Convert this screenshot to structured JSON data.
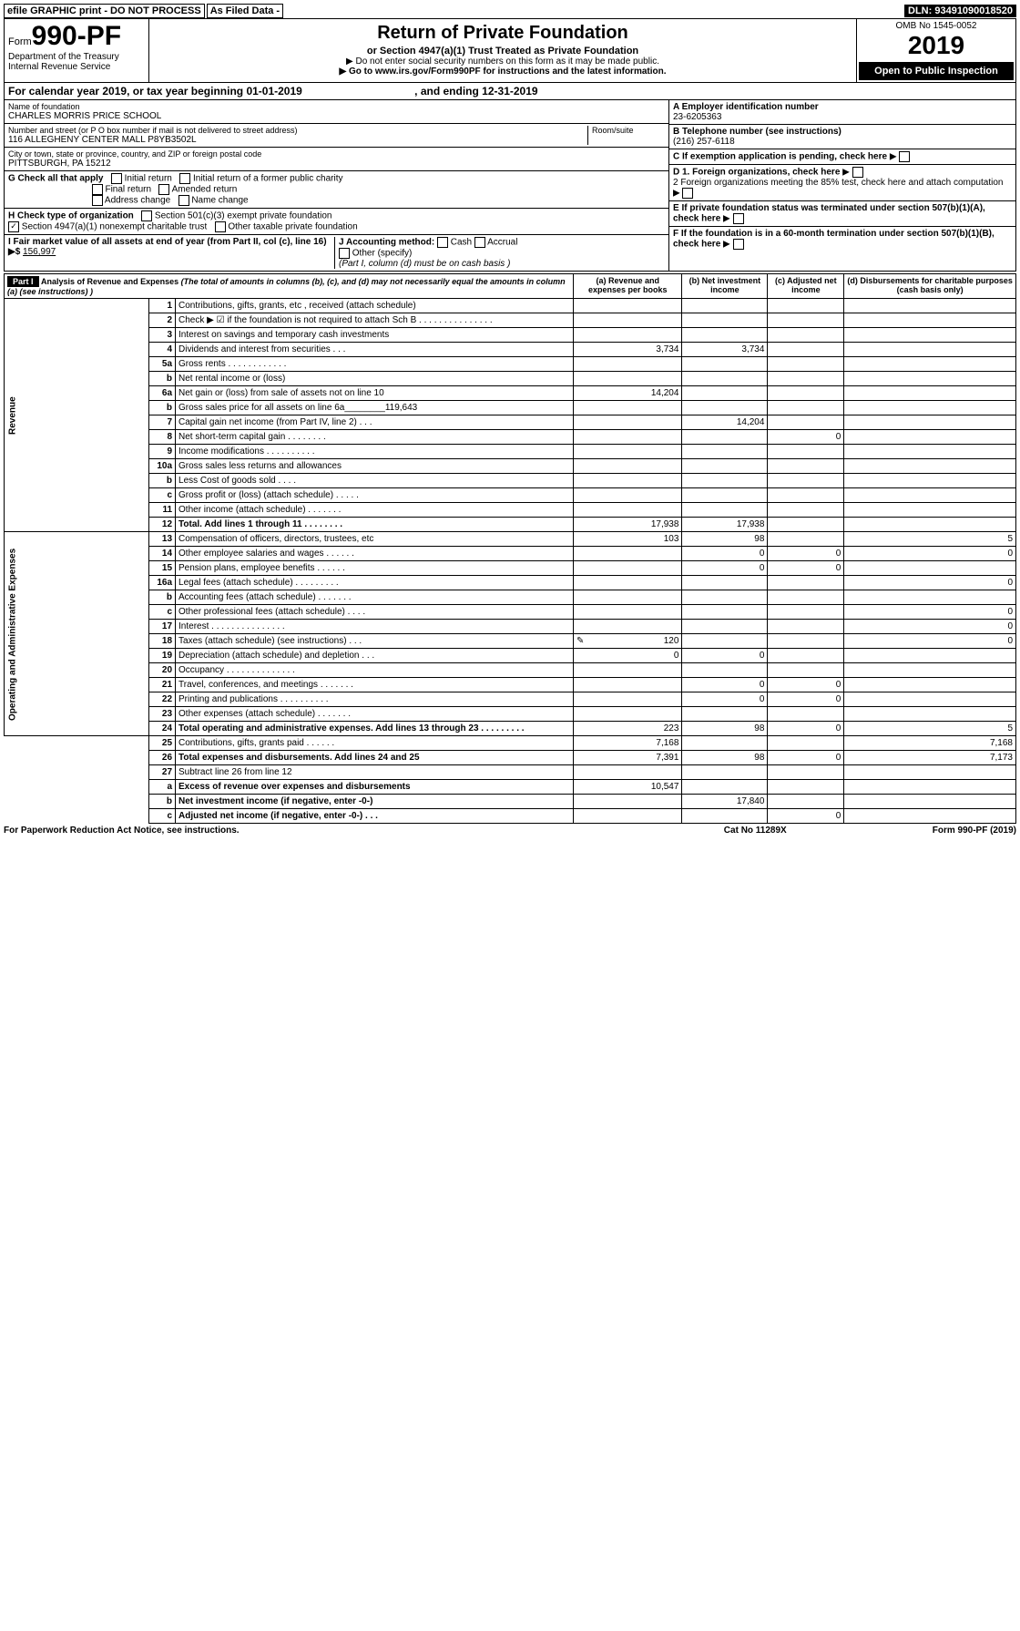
{
  "top": {
    "efile": "efile GRAPHIC print - DO NOT PROCESS",
    "asfiled": "As Filed Data -",
    "dln": "DLN: 93491090018520"
  },
  "hdr": {
    "form_prefix": "Form",
    "form_num": "990-PF",
    "dept": "Department of the Treasury",
    "irs": "Internal Revenue Service",
    "title": "Return of Private Foundation",
    "sub": "or Section 4947(a)(1) Trust Treated as Private Foundation",
    "note1": "▶ Do not enter social security numbers on this form as it may be made public.",
    "note2": "▶ Go to www.irs.gov/Form990PF for instructions and the latest information.",
    "omb": "OMB No 1545-0052",
    "year": "2019",
    "open": "Open to Public Inspection"
  },
  "cal": {
    "text": "For calendar year 2019, or tax year beginning 01-01-2019",
    "end": ", and ending 12-31-2019"
  },
  "info": {
    "name_lbl": "Name of foundation",
    "name": "CHARLES MORRIS PRICE SCHOOL",
    "addr_lbl": "Number and street (or P O  box number if mail is not delivered to street address)",
    "room_lbl": "Room/suite",
    "addr": "116 ALLEGHENY CENTER MALL P8YB3502L",
    "city_lbl": "City or town, state or province, country, and ZIP or foreign postal code",
    "city": "PITTSBURGH, PA  15212",
    "ein_lbl": "A Employer identification number",
    "ein": "23-6205363",
    "tel_lbl": "B Telephone number (see instructions)",
    "tel": "(216) 257-6118",
    "c_lbl": "C If exemption application is pending, check here",
    "g_lbl": "G Check all that apply",
    "g1": "Initial return",
    "g2": "Initial return of a former public charity",
    "g3": "Final return",
    "g4": "Amended return",
    "g5": "Address change",
    "g6": "Name change",
    "h_lbl": "H Check type of organization",
    "h1": "Section 501(c)(3) exempt private foundation",
    "h2": "Section 4947(a)(1) nonexempt charitable trust",
    "h3": "Other taxable private foundation",
    "d_lbl": "D 1. Foreign organizations, check here",
    "d2": "2 Foreign organizations meeting the 85% test, check here and attach computation",
    "e_lbl": "E  If private foundation status was terminated under section 507(b)(1)(A), check here",
    "f_lbl": "F  If the foundation is in a 60-month termination under section 507(b)(1)(B), check here",
    "i_lbl": "I Fair market value of all assets at end of year (from Part II, col  (c), line 16) ▶$",
    "i_val": "156,997",
    "j_lbl": "J Accounting method:",
    "j1": "Cash",
    "j2": "Accrual",
    "j3": "Other (specify)",
    "j_note": "(Part I, column (d) must be on cash basis )"
  },
  "pt1": {
    "part": "Part I",
    "title": "Analysis of Revenue and Expenses",
    "title_note": "(The total of amounts in columns (b), (c), and (d) may not necessarily equal the amounts in column (a) (see instructions) )",
    "cols": {
      "a": "(a) Revenue and expenses per books",
      "b": "(b) Net investment income",
      "c": "(c) Adjusted net income",
      "d": "(d) Disbursements for charitable purposes (cash basis only)"
    },
    "side_rev": "Revenue",
    "side_exp": "Operating and Administrative Expenses",
    "rows": [
      {
        "n": "1",
        "d": "Contributions, gifts, grants, etc , received (attach schedule)"
      },
      {
        "n": "2",
        "d": "Check ▶ ☑ if the foundation is not required to attach Sch  B   .  .  .  .  .  .  .  .  .  .  .  .  .  .  ."
      },
      {
        "n": "3",
        "d": "Interest on savings and temporary cash investments"
      },
      {
        "n": "4",
        "d": "Dividends and interest from securities   .  .  .",
        "a": "3,734",
        "b": "3,734"
      },
      {
        "n": "5a",
        "d": "Gross rents   .  .  .  .  .  .  .  .  .  .  .  ."
      },
      {
        "n": "b",
        "d": "Net rental income or (loss)"
      },
      {
        "n": "6a",
        "d": "Net gain or (loss) from sale of assets not on line 10",
        "a": "14,204"
      },
      {
        "n": "b",
        "d": "Gross sales price for all assets on line 6a________119,643"
      },
      {
        "n": "7",
        "d": "Capital gain net income (from Part IV, line 2)   .  .  .",
        "b": "14,204"
      },
      {
        "n": "8",
        "d": "Net short-term capital gain   .  .  .  .  .  .  .  .",
        "c": "0"
      },
      {
        "n": "9",
        "d": "Income modifications   .  .  .  .  .  .  .  .  .  ."
      },
      {
        "n": "10a",
        "d": "Gross sales less returns and allowances"
      },
      {
        "n": "b",
        "d": "Less  Cost of goods sold   .  .  .  ."
      },
      {
        "n": "c",
        "d": "Gross profit or (loss) (attach schedule)   .  .  .  .  ."
      },
      {
        "n": "11",
        "d": "Other income (attach schedule)   .  .  .  .  .  .  ."
      },
      {
        "n": "12",
        "d": "Total. Add lines 1 through 11   .  .  .  .  .  .  .  .",
        "bold": true,
        "a": "17,938",
        "b": "17,938"
      },
      {
        "n": "13",
        "d": "Compensation of officers, directors, trustees, etc",
        "a": "103",
        "b": "98",
        "dv": "5"
      },
      {
        "n": "14",
        "d": "Other employee salaries and wages   .  .  .  .  .  .",
        "b": "0",
        "c": "0",
        "dv": "0"
      },
      {
        "n": "15",
        "d": "Pension plans, employee benefits   .  .  .  .  .  .",
        "b": "0",
        "c": "0"
      },
      {
        "n": "16a",
        "d": "Legal fees (attach schedule)  .  .  .  .  .  .  .  .  .",
        "dv": "0"
      },
      {
        "n": "b",
        "d": "Accounting fees (attach schedule)  .  .  .  .  .  .  ."
      },
      {
        "n": "c",
        "d": "Other professional fees (attach schedule)   .  .  .  .",
        "dv": "0"
      },
      {
        "n": "17",
        "d": "Interest  .  .  .  .  .  .  .  .  .  .  .  .  .  .  .",
        "dv": "0"
      },
      {
        "n": "18",
        "d": "Taxes (attach schedule) (see instructions)    .  .  .",
        "a": "120",
        "dv": "0",
        "icon": "✎"
      },
      {
        "n": "19",
        "d": "Depreciation (attach schedule) and depletion   .  .  .",
        "a": "0",
        "b": "0"
      },
      {
        "n": "20",
        "d": "Occupancy   .  .  .  .  .  .  .  .  .  .  .  .  .  ."
      },
      {
        "n": "21",
        "d": "Travel, conferences, and meetings  .  .  .  .  .  .  .",
        "b": "0",
        "c": "0"
      },
      {
        "n": "22",
        "d": "Printing and publications  .  .  .  .  .  .  .  .  .  .",
        "b": "0",
        "c": "0"
      },
      {
        "n": "23",
        "d": "Other expenses (attach schedule)  .  .  .  .  .  .  ."
      },
      {
        "n": "24",
        "d": "Total operating and administrative expenses. Add lines 13 through 23   .  .  .  .  .  .  .  .  .",
        "bold": true,
        "a": "223",
        "b": "98",
        "c": "0",
        "dv": "5"
      },
      {
        "n": "25",
        "d": "Contributions, gifts, grants paid   .  .  .  .  .  .",
        "a": "7,168",
        "dv": "7,168"
      },
      {
        "n": "26",
        "d": "Total expenses and disbursements. Add lines 24 and 25",
        "bold": true,
        "a": "7,391",
        "b": "98",
        "c": "0",
        "dv": "7,173"
      },
      {
        "n": "27",
        "d": "Subtract line 26 from line 12"
      },
      {
        "n": "a",
        "d": "Excess of revenue over expenses and disbursements",
        "bold": true,
        "a": "10,547"
      },
      {
        "n": "b",
        "d": "Net investment income (if negative, enter -0-)",
        "bold": true,
        "b": "17,840"
      },
      {
        "n": "c",
        "d": "Adjusted net income (if negative, enter -0-)   .  .  .",
        "bold": true,
        "c": "0"
      }
    ],
    "rev_rows": 16,
    "exp_rows": 14
  },
  "ftr": {
    "l": "For Paperwork Reduction Act Notice, see instructions.",
    "c": "Cat  No  11289X",
    "r": "Form 990-PF (2019)"
  }
}
